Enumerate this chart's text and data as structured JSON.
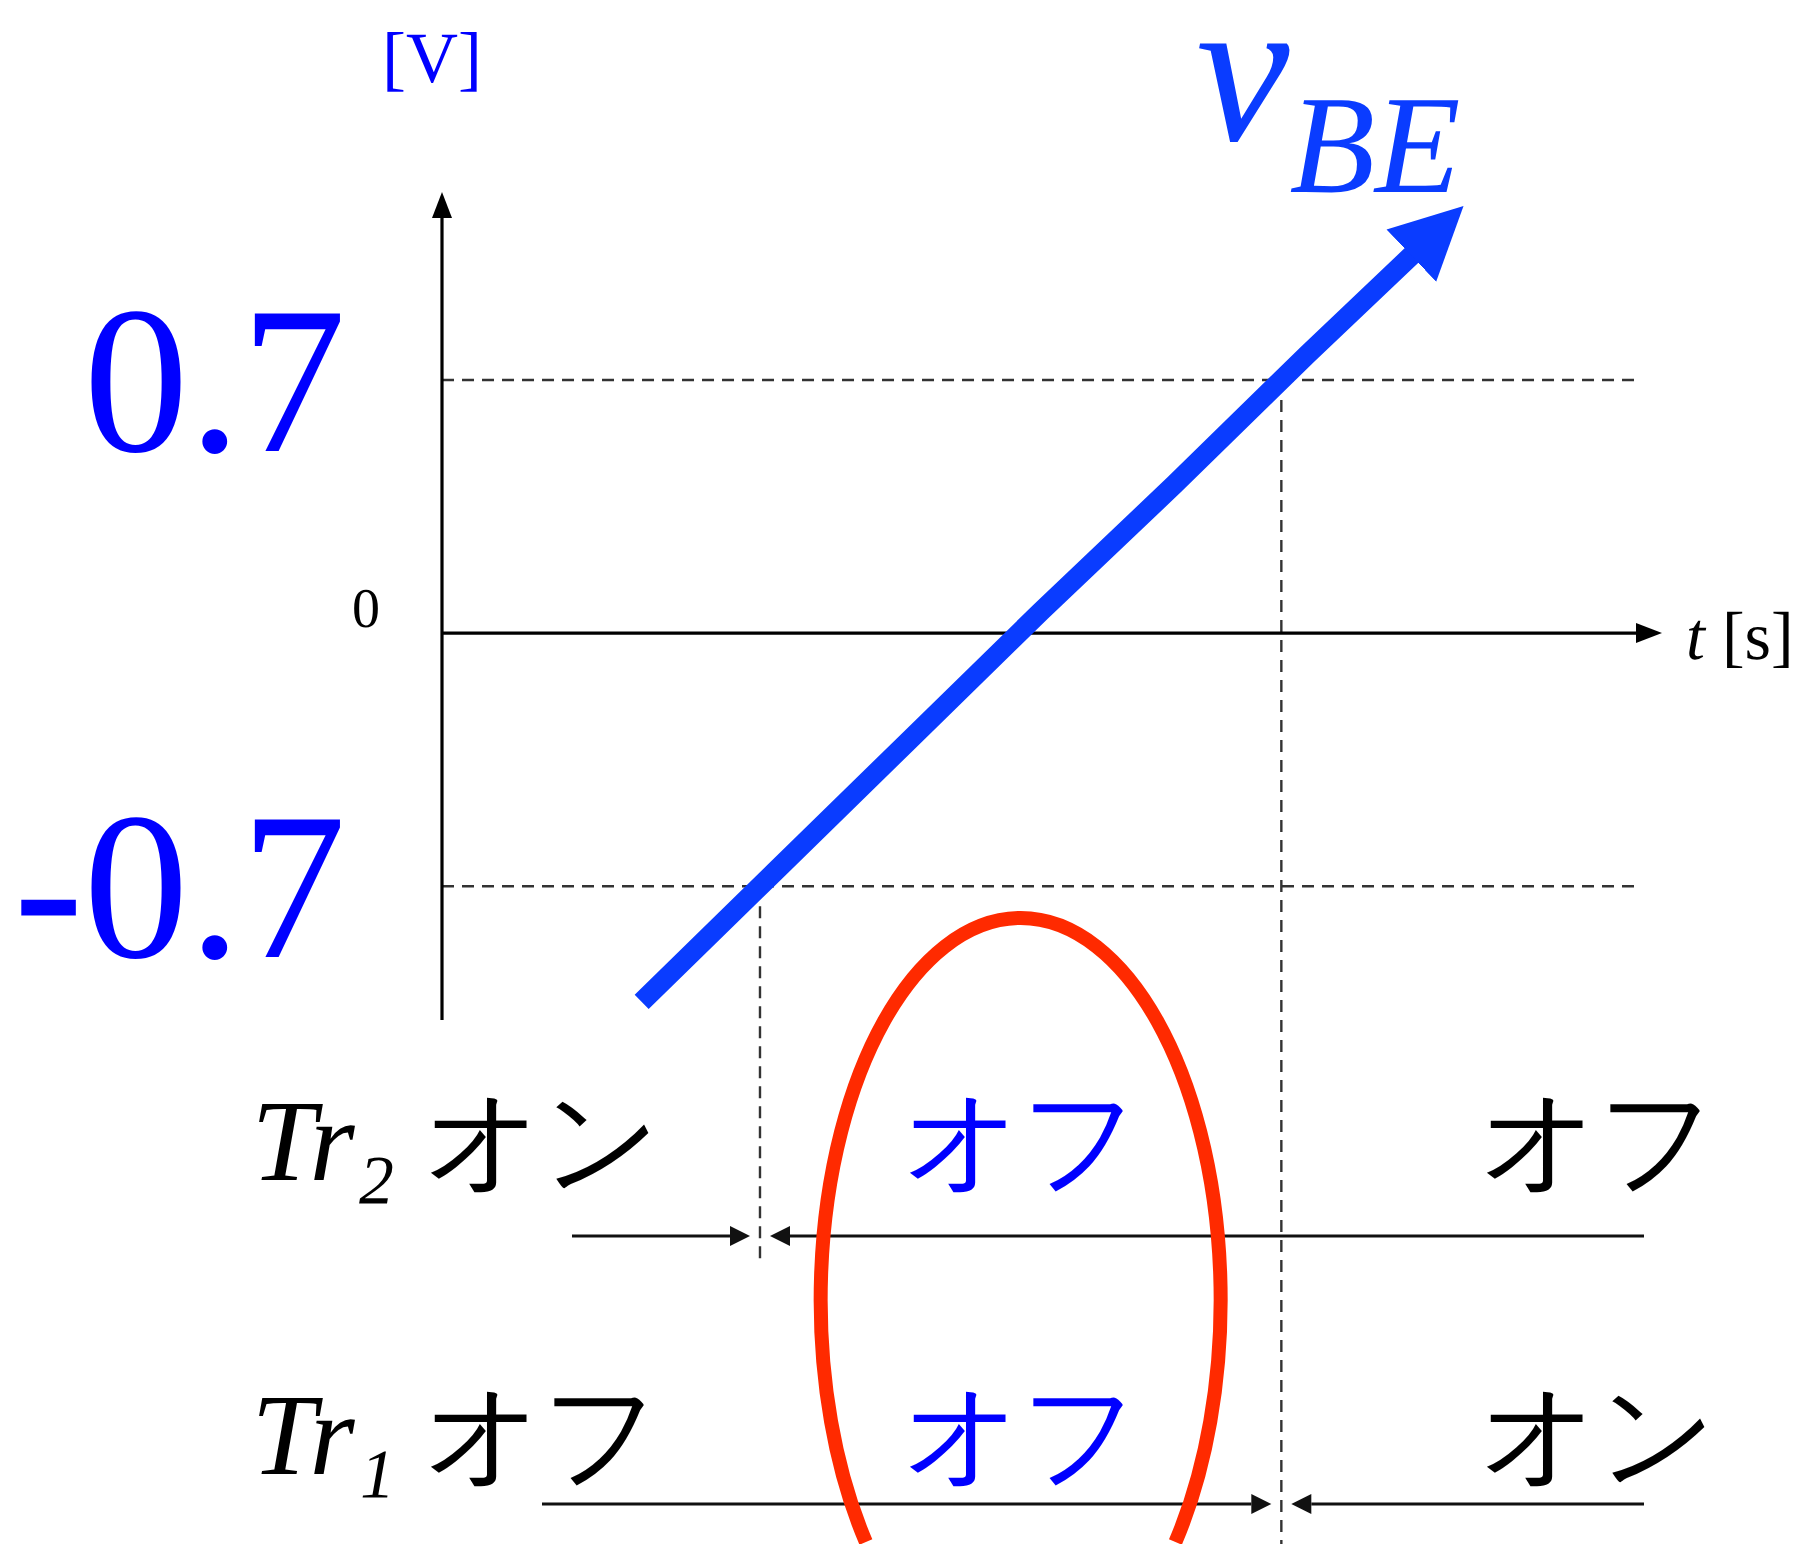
{
  "chart_data": {
    "type": "line",
    "xlabel": "t [s]",
    "ylabel": "[V]",
    "categories": [
      null,
      null,
      null,
      null,
      null,
      null,
      null,
      null,
      null
    ],
    "ylim": [
      -1.07,
      1.17
    ],
    "yticks": [
      -0.7,
      0.7
    ],
    "tick_labels": "y",
    "series": [
      {
        "name": "v$_{BE}$",
        "color": "#0a3cff",
        "values": [
          null,
          -1.02,
          -0.66,
          -0.3,
          0.06,
          0.41,
          0.77,
          1.12,
          null
        ]
      }
    ],
    "ref_lines": [
      {
        "axis": "y",
        "value": -0.7,
        "line_style": "dashed"
      },
      {
        "axis": "y",
        "value": 0.7,
        "line_style": "dashed"
      }
    ],
    "annotations": [
      "0",
      "Tr₂ オン",
      "オフ",
      "オフ",
      "Tr₁ オフ",
      "オフ",
      "オン"
    ]
  }
}
